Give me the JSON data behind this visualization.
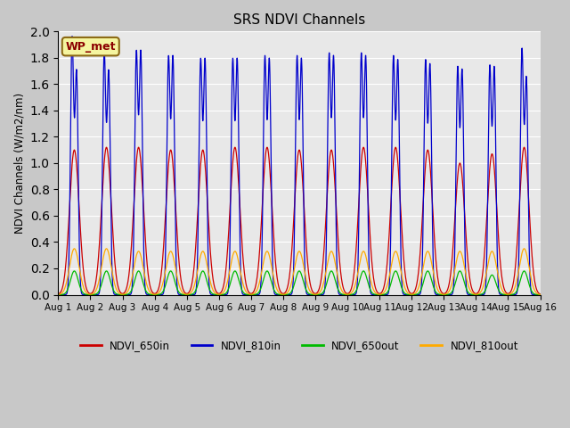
{
  "title": "SRS NDVI Channels",
  "ylabel": "NDVI Channels (W/m2/nm)",
  "ylim": [
    0.0,
    2.0
  ],
  "yticks": [
    0.0,
    0.2,
    0.4,
    0.6,
    0.8,
    1.0,
    1.2,
    1.4,
    1.6,
    1.8,
    2.0
  ],
  "num_days": 15,
  "colors": {
    "NDVI_650in": "#cc0000",
    "NDVI_810in": "#0000cc",
    "NDVI_650out": "#00bb00",
    "NDVI_810out": "#ffaa00"
  },
  "legend_label": "WP_met",
  "fig_facecolor": "#c8c8c8",
  "ax_facecolor": "#e8e8e8",
  "peaks_650in": [
    1.1,
    1.12,
    1.12,
    1.1,
    1.1,
    1.12,
    1.12,
    1.1,
    1.1,
    1.12,
    1.12,
    1.1,
    1.0,
    1.07,
    1.12
  ],
  "peaks_810in_tall": [
    1.93,
    1.82,
    1.82,
    1.78,
    1.76,
    1.76,
    1.78,
    1.78,
    1.8,
    1.8,
    1.78,
    1.75,
    1.7,
    1.71,
    1.84
  ],
  "peaks_810in_short": [
    1.67,
    1.67,
    1.82,
    1.78,
    1.76,
    1.76,
    1.76,
    1.76,
    1.78,
    1.78,
    1.75,
    1.72,
    1.68,
    1.7,
    1.62
  ],
  "peaks_650out": [
    0.18,
    0.18,
    0.18,
    0.18,
    0.18,
    0.18,
    0.18,
    0.18,
    0.18,
    0.18,
    0.18,
    0.18,
    0.18,
    0.15,
    0.18
  ],
  "peaks_810out": [
    0.35,
    0.35,
    0.33,
    0.33,
    0.33,
    0.33,
    0.33,
    0.33,
    0.33,
    0.33,
    0.33,
    0.33,
    0.33,
    0.33,
    0.35
  ]
}
